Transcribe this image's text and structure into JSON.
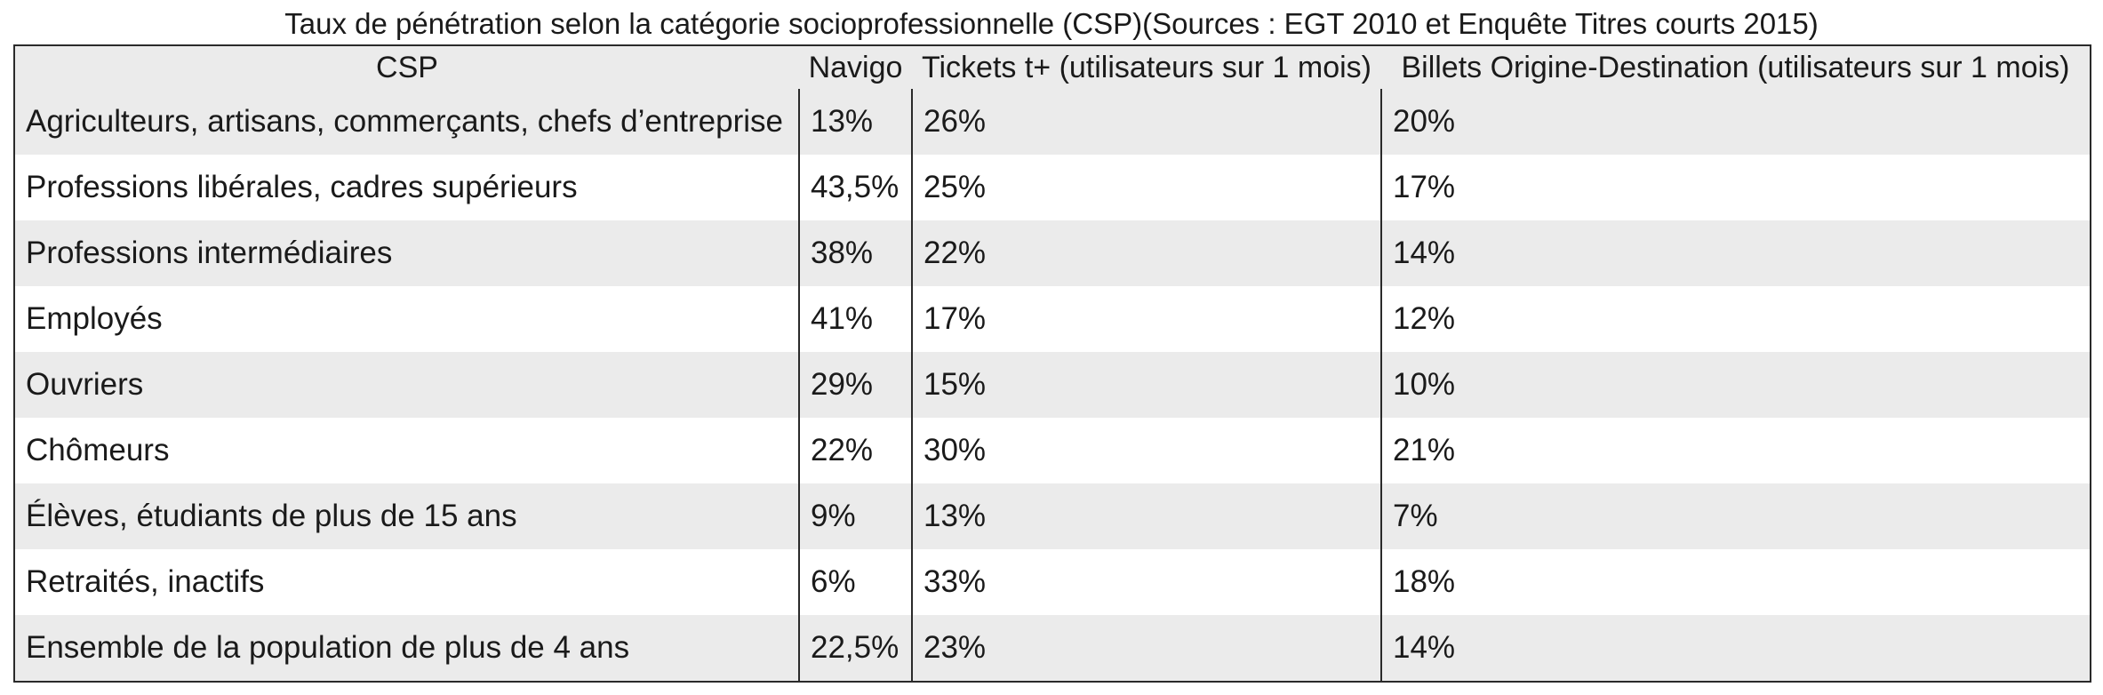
{
  "caption": "Taux de pénétration selon la catégorie socioprofessionnelle (CSP)(Sources : EGT 2010 et Enquête Titres courts 2015)",
  "columns": [
    "CSP",
    "Navigo",
    "Tickets t+ (utilisateurs sur 1 mois)",
    "Billets Origine-Destination (utilisateurs sur 1 mois)"
  ],
  "rows": [
    [
      "Agriculteurs, artisans, commerçants, chefs d’entreprise",
      "13%",
      "26%",
      "20%"
    ],
    [
      "Professions libérales, cadres supérieurs",
      "43,5%",
      "25%",
      "17%"
    ],
    [
      "Professions intermédiaires",
      "38%",
      "22%",
      "14%"
    ],
    [
      "Employés",
      "41%",
      "17%",
      "12%"
    ],
    [
      "Ouvriers",
      "29%",
      "15%",
      "10%"
    ],
    [
      "Chômeurs",
      "22%",
      "30%",
      "21%"
    ],
    [
      "Élèves, étudiants de plus de 15 ans",
      "9%",
      "13%",
      "7%"
    ],
    [
      "Retraités, inactifs",
      "6%",
      "33%",
      "18%"
    ],
    [
      "Ensemble de la population de plus de 4 ans",
      "22,5%",
      "23%",
      "14%"
    ]
  ]
}
